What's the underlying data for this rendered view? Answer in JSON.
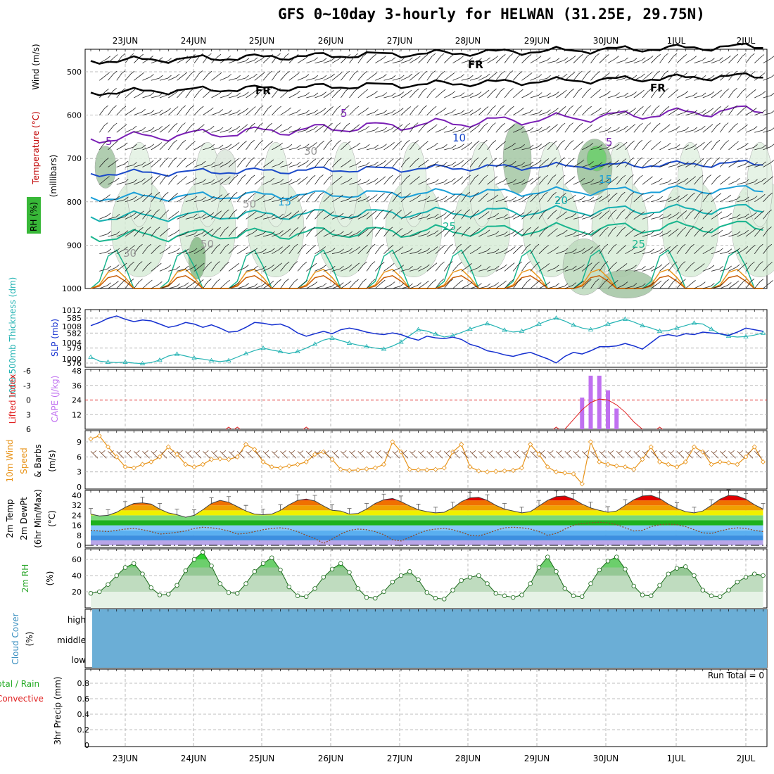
{
  "title": "GFS 0~10day 3-hourly for HELWAN (31.25E, 29.75N)",
  "dates": [
    "23JUN",
    "24JUN",
    "25JUN",
    "26JUN",
    "27JUN",
    "28JUN",
    "29JUN",
    "30JUN",
    "1JUL",
    "2JUL"
  ],
  "colors": {
    "wind": "#000000",
    "temperature": "#c00000",
    "rh": "#2ea82e",
    "thickness": "#23b3b3",
    "slp": "#1530d0",
    "lifted": "#e02020",
    "cape": "#c070f0",
    "wind10": "#e8941a",
    "cloud": "#6baed6",
    "rain": "#22aa22",
    "convective": "#e02020"
  },
  "panels": {
    "profile": {
      "ylabels": [
        "Wind (m/s)",
        "Temperature (°C)",
        "RH (%)",
        "(millibars)"
      ],
      "yticks": [
        "500",
        "600",
        "700",
        "800",
        "900",
        "1000"
      ],
      "contour_labels": [
        {
          "text": "FR",
          "color": "#000000"
        },
        {
          "text": "FR",
          "color": "#000000"
        },
        {
          "text": "FR",
          "color": "#000000"
        },
        {
          "text": "5",
          "color": "#7a1fb5"
        },
        {
          "text": "5",
          "color": "#7a1fb5"
        },
        {
          "text": "5",
          "color": "#7a1fb5"
        },
        {
          "text": "10",
          "color": "#1a49c9"
        },
        {
          "text": "15",
          "color": "#1a9fd8"
        },
        {
          "text": "15",
          "color": "#1a9fd8"
        },
        {
          "text": "20",
          "color": "#17b0b0"
        },
        {
          "text": "25",
          "color": "#19b58e"
        },
        {
          "text": "25",
          "color": "#19b58e"
        },
        {
          "text": "30",
          "color": "#999999"
        },
        {
          "text": "50",
          "color": "#999999"
        },
        {
          "text": "30",
          "color": "#999999"
        },
        {
          "text": "50",
          "color": "#999999"
        }
      ]
    },
    "thickness_slp": {
      "ylabel_left": "1000-500mb Thickness (dm)",
      "ylabel_right": "SLP (mb)",
      "ticks_left": [
        "585",
        "582",
        "579",
        "576"
      ],
      "ticks_right": [
        "1012",
        "1008",
        "1004",
        "1000"
      ]
    },
    "lifted_cape": {
      "ylabel_left": "Lifted Index",
      "ylabel_right": "CAPE (J/kg)",
      "ticks_left": [
        "-6",
        "-3",
        "0",
        "3",
        "6"
      ],
      "ticks_right": [
        "48",
        "36",
        "24",
        "12"
      ]
    },
    "wind10m": {
      "ylabel": "10m Wind Speed & Barbs (m/s)",
      "yticks": [
        "9",
        "6",
        "3",
        "0"
      ]
    },
    "temp2m": {
      "ylabel": "2m Temp 2m DewPt (6hr Min/Max) (°C)",
      "yticks": [
        "40",
        "32",
        "24",
        "16",
        "8",
        "0"
      ]
    },
    "rh2m": {
      "ylabel": "2m RH (%)",
      "yticks": [
        "60",
        "40",
        "20"
      ]
    },
    "cloud": {
      "ylabel": "Cloud Cover (%)",
      "levels": [
        "high",
        "middle",
        "low"
      ]
    },
    "precip": {
      "ylabel": "3hr Precip (mm)",
      "legend_rain": "Total / Rain",
      "legend_conv": "Convective",
      "run_total": "Run Total = 0",
      "yticks": [
        "0.8",
        "0.6",
        "0.4",
        "0.2",
        "0"
      ]
    }
  },
  "chart_data": [
    {
      "type": "line",
      "name": "1000-500mb thickness",
      "units": "dm",
      "x_step_hours": 3,
      "values": [
        577.2,
        576.4,
        576.2,
        576.1,
        576.2,
        576.0,
        575.9,
        576.1,
        576.6,
        577.4,
        577.8,
        577.4,
        577.0,
        576.8,
        576.5,
        576.3,
        576.5,
        577.2,
        577.9,
        578.5,
        579.0,
        578.6,
        578.3,
        577.9,
        578.3,
        579.0,
        579.8,
        580.6,
        581.0,
        580.5,
        580.0,
        579.6,
        579.3,
        579.0,
        578.8,
        579.4,
        580.2,
        581.5,
        582.7,
        582.4,
        581.8,
        581.2,
        581.5,
        582.1,
        582.8,
        583.4,
        583.9,
        583.3,
        582.6,
        582.2,
        582.4,
        583.0,
        583.8,
        584.5,
        585.0,
        584.4,
        583.6,
        583.0,
        582.7,
        583.1,
        583.8,
        584.3,
        584.8,
        584.2,
        583.5,
        583.0,
        582.4,
        582.5,
        583.0,
        583.5,
        584.0,
        583.8,
        582.8,
        581.8,
        581.4,
        581.2,
        581.3,
        581.6,
        582.0,
        582.4
      ]
    },
    {
      "type": "line",
      "name": "SLP",
      "units": "mb",
      "x_step_hours": 3,
      "values": [
        1008.2,
        1009.0,
        1010.0,
        1010.6,
        1009.8,
        1009.2,
        1009.6,
        1009.4,
        1008.6,
        1007.8,
        1008.2,
        1009.0,
        1008.6,
        1007.8,
        1008.4,
        1007.6,
        1006.6,
        1006.8,
        1007.8,
        1009.0,
        1008.8,
        1008.4,
        1008.6,
        1007.8,
        1006.4,
        1005.6,
        1006.2,
        1006.8,
        1006.2,
        1007.2,
        1007.6,
        1007.2,
        1006.6,
        1006.2,
        1006.0,
        1006.4,
        1006.0,
        1005.2,
        1004.6,
        1005.6,
        1005.2,
        1005.0,
        1005.4,
        1004.8,
        1003.6,
        1003.0,
        1002.0,
        1001.6,
        1001.0,
        1000.6,
        1001.2,
        1001.6,
        1000.8,
        1000.0,
        999.0,
        1000.6,
        1001.6,
        1001.2,
        1002.0,
        1003.0,
        1003.0,
        1003.2,
        1003.8,
        1003.2,
        1002.4,
        1004.0,
        1005.6,
        1006.0,
        1005.6,
        1006.2,
        1006.0,
        1006.6,
        1006.4,
        1006.2,
        1005.8,
        1006.6,
        1007.6,
        1007.2,
        1006.8,
        1007.2
      ]
    },
    {
      "type": "bar",
      "name": "CAPE",
      "units": "J/kg",
      "x_step_hours": 3,
      "bars": [
        {
          "index": 57,
          "value": 26
        },
        {
          "index": 58,
          "value": 44
        },
        {
          "index": 59,
          "value": 44
        },
        {
          "index": 60,
          "value": 32
        },
        {
          "index": 61,
          "value": 17
        }
      ]
    },
    {
      "type": "line",
      "name": "10m wind speed",
      "units": "m/s",
      "x_step_hours": 3,
      "values": [
        9.6,
        10.2,
        8.0,
        6.0,
        4.0,
        3.8,
        4.5,
        5.0,
        6.0,
        8.0,
        6.5,
        4.5,
        4.0,
        4.5,
        5.5,
        5.6,
        5.5,
        6.0,
        8.5,
        7.5,
        5.0,
        4.0,
        3.8,
        4.2,
        4.5,
        5.0,
        6.5,
        7.0,
        5.5,
        3.5,
        3.3,
        3.4,
        3.6,
        3.8,
        4.5,
        9.0,
        7.0,
        3.5,
        3.4,
        3.4,
        3.5,
        3.8,
        7.0,
        8.5,
        4.0,
        3.2,
        3.0,
        3.1,
        3.2,
        3.3,
        3.8,
        8.5,
        6.5,
        4.0,
        3.0,
        2.8,
        2.6,
        0.6,
        9.0,
        5.0,
        4.5,
        4.2,
        4.0,
        3.5,
        5.5,
        8.0,
        5.0,
        4.5,
        4.0,
        5.0,
        8.0,
        7.0,
        4.5,
        5.0,
        4.8,
        4.5,
        6.0,
        8.0,
        5.0,
        4.8
      ]
    },
    {
      "type": "area",
      "name": "2m temperature",
      "units": "°C",
      "x_step_hours": 3,
      "values": [
        25.0,
        23.5,
        24.0,
        26.5,
        30.5,
        33.5,
        34.0,
        33.0,
        29.0,
        26.0,
        24.5,
        22.5,
        24.0,
        28.5,
        33.5,
        36.0,
        34.5,
        31.0,
        27.5,
        25.0,
        24.5,
        25.0,
        28.0,
        32.5,
        36.0,
        37.0,
        35.5,
        31.5,
        28.0,
        27.5,
        25.0,
        25.5,
        29.0,
        33.5,
        36.5,
        37.5,
        35.0,
        31.5,
        28.5,
        27.0,
        26.0,
        26.5,
        30.0,
        35.0,
        38.0,
        38.5,
        36.0,
        32.0,
        29.0,
        27.5,
        26.0,
        27.0,
        31.5,
        36.0,
        39.0,
        39.5,
        37.0,
        33.0,
        30.0,
        28.0,
        26.5,
        27.5,
        32.0,
        36.5,
        39.5,
        40.0,
        37.5,
        33.0,
        29.5,
        27.0,
        26.0,
        27.5,
        32.0,
        37.0,
        40.0,
        39.5,
        37.0,
        32.5,
        29.0,
        27.0
      ]
    },
    {
      "type": "line",
      "name": "2m dewpoint",
      "units": "°C",
      "x_step_hours": 3,
      "values": [
        12.0,
        11.5,
        11.0,
        12.0,
        13.0,
        13.5,
        12.5,
        11.0,
        9.0,
        9.5,
        10.5,
        11.5,
        13.5,
        14.5,
        14.0,
        13.0,
        11.5,
        9.0,
        9.5,
        11.0,
        12.5,
        13.5,
        14.0,
        13.0,
        11.0,
        8.0,
        5.5,
        1.5,
        5.0,
        9.0,
        12.0,
        13.0,
        12.5,
        11.0,
        8.5,
        4.5,
        3.5,
        6.5,
        9.5,
        12.0,
        13.0,
        13.5,
        12.5,
        10.5,
        8.0,
        7.5,
        9.5,
        12.0,
        14.0,
        14.5,
        14.0,
        13.0,
        11.0,
        8.0,
        9.5,
        13.0,
        16.0,
        17.5,
        18.0,
        18.5,
        18.0,
        16.5,
        14.0,
        11.5,
        12.0,
        15.0,
        16.5,
        17.0,
        16.5,
        15.0,
        12.5,
        10.0,
        9.5,
        11.5,
        13.0,
        14.0,
        13.5,
        12.0,
        11.0,
        11.5
      ]
    },
    {
      "type": "area",
      "name": "2m RH",
      "units": "%",
      "x_step_hours": 3,
      "values": [
        18.0,
        20.0,
        29.0,
        40.0,
        50.0,
        55.0,
        42.0,
        25.0,
        16.0,
        17.0,
        28.0,
        46.0,
        60.0,
        69.0,
        52.0,
        30.0,
        19.0,
        18.0,
        30.0,
        45.0,
        55.0,
        62.0,
        47.0,
        26.0,
        15.0,
        14.0,
        24.0,
        38.0,
        48.0,
        55.0,
        44.0,
        24.0,
        13.0,
        12.0,
        20.0,
        32.0,
        40.0,
        45.0,
        35.0,
        19.0,
        12.0,
        11.0,
        22.0,
        34.0,
        38.0,
        40.0,
        30.0,
        18.0,
        15.0,
        13.0,
        16.0,
        30.0,
        50.0,
        63.0,
        45.0,
        24.0,
        15.0,
        14.0,
        30.0,
        47.0,
        58.0,
        63.0,
        48.0,
        27.0,
        16.0,
        15.0,
        28.0,
        42.0,
        49.0,
        51.0,
        40.0,
        22.0,
        15.0,
        14.0,
        22.0,
        32.0,
        38.0,
        42.0,
        40.0,
        30.0
      ]
    },
    {
      "type": "line",
      "name": "3hr precip",
      "units": "mm",
      "values": [
        0,
        0,
        0,
        0,
        0,
        0,
        0,
        0,
        0,
        0
      ]
    }
  ]
}
